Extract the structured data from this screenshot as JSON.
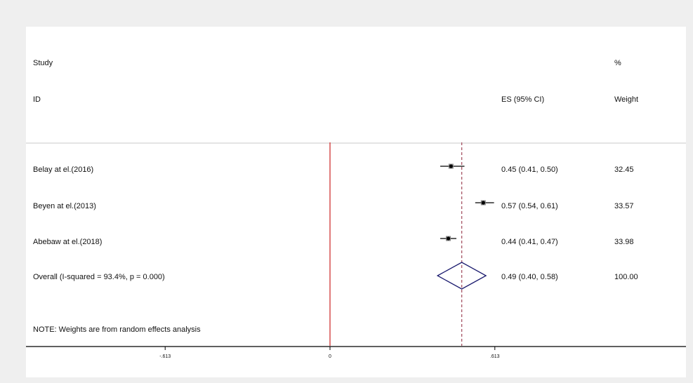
{
  "headers": {
    "study_line1": "Study",
    "study_line2": "ID",
    "es": "ES (95% CI)",
    "weight_line1": "%",
    "weight_line2": "Weight"
  },
  "note": "NOTE: Weights are from random effects analysis",
  "colors": {
    "null_line": "#cc2222",
    "overall_line": "#a0485a",
    "diamond": "#1a1a6e",
    "ci": "#000000",
    "point": "#000000"
  },
  "chart_data": {
    "type": "forest",
    "x_ticks": [
      {
        "value": -0.613,
        "label": "-.613"
      },
      {
        "value": 0,
        "label": "0"
      },
      {
        "value": 0.613,
        "label": ".613"
      }
    ],
    "xlim": [
      -0.613,
      0.613
    ],
    "null_value": 0,
    "studies": [
      {
        "label": "Belay at el.(2016)",
        "es": 0.45,
        "lo": 0.41,
        "hi": 0.5,
        "es_text": "0.45 (0.41, 0.50)",
        "weight": "32.45"
      },
      {
        "label": "Beyen at el.(2013)",
        "es": 0.57,
        "lo": 0.54,
        "hi": 0.61,
        "es_text": "0.57 (0.54, 0.61)",
        "weight": "33.57"
      },
      {
        "label": "Abebaw at el.(2018)",
        "es": 0.44,
        "lo": 0.41,
        "hi": 0.47,
        "es_text": "0.44 (0.41, 0.47)",
        "weight": "33.98"
      }
    ],
    "overall": {
      "label": "Overall  (I-squared = 93.4%, p = 0.000)",
      "es": 0.49,
      "lo": 0.4,
      "hi": 0.58,
      "es_text": "0.49 (0.40, 0.58)",
      "weight": "100.00"
    }
  }
}
